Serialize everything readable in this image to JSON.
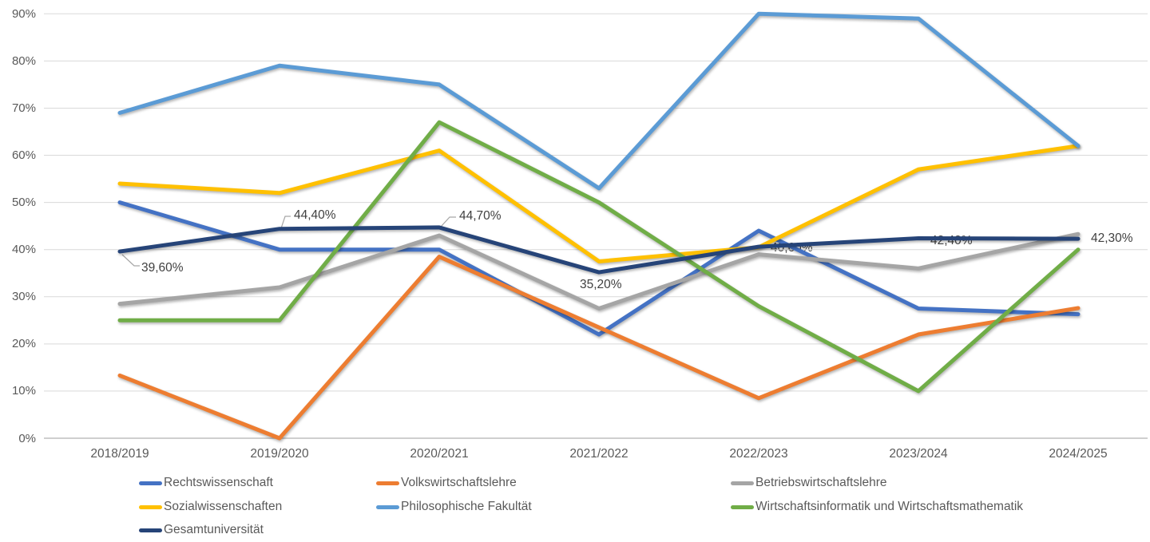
{
  "chart_data": {
    "type": "line",
    "title": "",
    "xlabel": "",
    "ylabel": "",
    "grid": true,
    "legend_position": "bottom",
    "categories": [
      "2018/2019",
      "2019/2020",
      "2020/2021",
      "2021/2022",
      "2022/2023",
      "2023/2024",
      "2024/2025"
    ],
    "y_axis": {
      "min": 0,
      "max": 90,
      "step": 10,
      "tick_labels": [
        "0%",
        "10%",
        "20%",
        "30%",
        "40%",
        "50%",
        "60%",
        "70%",
        "80%",
        "90%"
      ]
    },
    "series": [
      {
        "name": "Rechtswissenschaft",
        "color": "#4472C4",
        "values": [
          50,
          40,
          40,
          22,
          44,
          27.5,
          26.3
        ]
      },
      {
        "name": "Volkswirtschaftslehre",
        "color": "#ED7D31",
        "values": [
          13.3,
          0,
          38.5,
          23.5,
          8.5,
          22,
          27.6
        ]
      },
      {
        "name": "Betriebswirtschaftslehre",
        "color": "#A5A5A5",
        "values": [
          28.5,
          32,
          43,
          27.5,
          39,
          36,
          43.3
        ]
      },
      {
        "name": "Sozialwissenschaften",
        "color": "#FFC000",
        "values": [
          54,
          52,
          61,
          37.5,
          40.5,
          57,
          62
        ]
      },
      {
        "name": "Philosophische Fakultät",
        "color": "#5B9BD5",
        "values": [
          69,
          79,
          75,
          53,
          90,
          89,
          62
        ]
      },
      {
        "name": "Wirtschaftsinformatik und Wirtschaftsmathematik",
        "color": "#70AD47",
        "values": [
          25,
          25,
          67,
          50,
          28,
          10,
          40
        ]
      },
      {
        "name": "Gesamtuniversität",
        "color": "#264478",
        "values": [
          39.6,
          44.4,
          44.7,
          35.2,
          40.6,
          42.4,
          42.3
        ],
        "data_labels": [
          "39,60%",
          "44,40%",
          "44,70%",
          "35,20%",
          "40,60%",
          "42,40%",
          "42,30%"
        ]
      }
    ],
    "colors": {
      "gridline": "#D9D9D9",
      "axis_line": "#BFBFBF",
      "tick_text": "#595959",
      "data_label_text": "#404040"
    }
  }
}
